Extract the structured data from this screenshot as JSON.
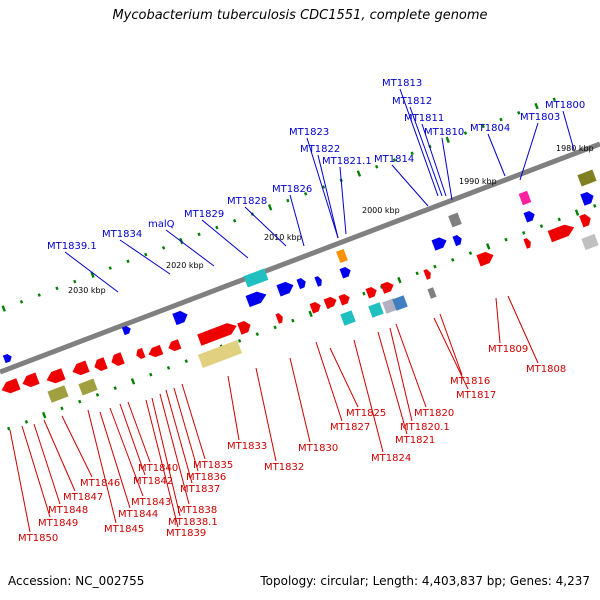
{
  "title": "Mycobacterium tuberculosis CDC1551, complete genome",
  "footer": {
    "accession": "Accession: NC_002755",
    "topology": "Topology: circular; Length: 4,403,837 bp; Genes: 4,237"
  },
  "colors": {
    "forward_strand": "#0000ee",
    "reverse_strand": "#ee0000",
    "top_label": "#0000cc",
    "bottom_label": "#cc0000",
    "genome_line": "#808080",
    "tick_major": "#008000"
  },
  "kbp_marks": [
    "1980 kbp",
    "1990 kbp",
    "2000 kbp",
    "2010 kbp",
    "2020 kbp",
    "2030 kbp"
  ],
  "top_labels": [
    "MT1813",
    "MT1812",
    "MT1800",
    "MT1811",
    "MT1803",
    "MT1823",
    "MT1810",
    "MT1804",
    "MT1822",
    "MT1821.1",
    "MT1814",
    "MT1826",
    "MT1828",
    "MT1829",
    "malQ",
    "MT1834",
    "MT1839.1"
  ],
  "bottom_labels": [
    "MT1809",
    "MT1808",
    "MT1816",
    "MT1817",
    "MT1825",
    "MT1820",
    "MT1827",
    "MT1820.1",
    "MT1821",
    "MT1833",
    "MT1830",
    "MT1824",
    "MT1835",
    "MT1840",
    "MT1832",
    "MT1836",
    "MT1842",
    "MT1846",
    "MT1837",
    "MT1847",
    "MT1843",
    "MT1848",
    "MT1838",
    "MT1844",
    "MT1849",
    "MT1838.1",
    "MT1845",
    "MT1839",
    "MT1850"
  ]
}
